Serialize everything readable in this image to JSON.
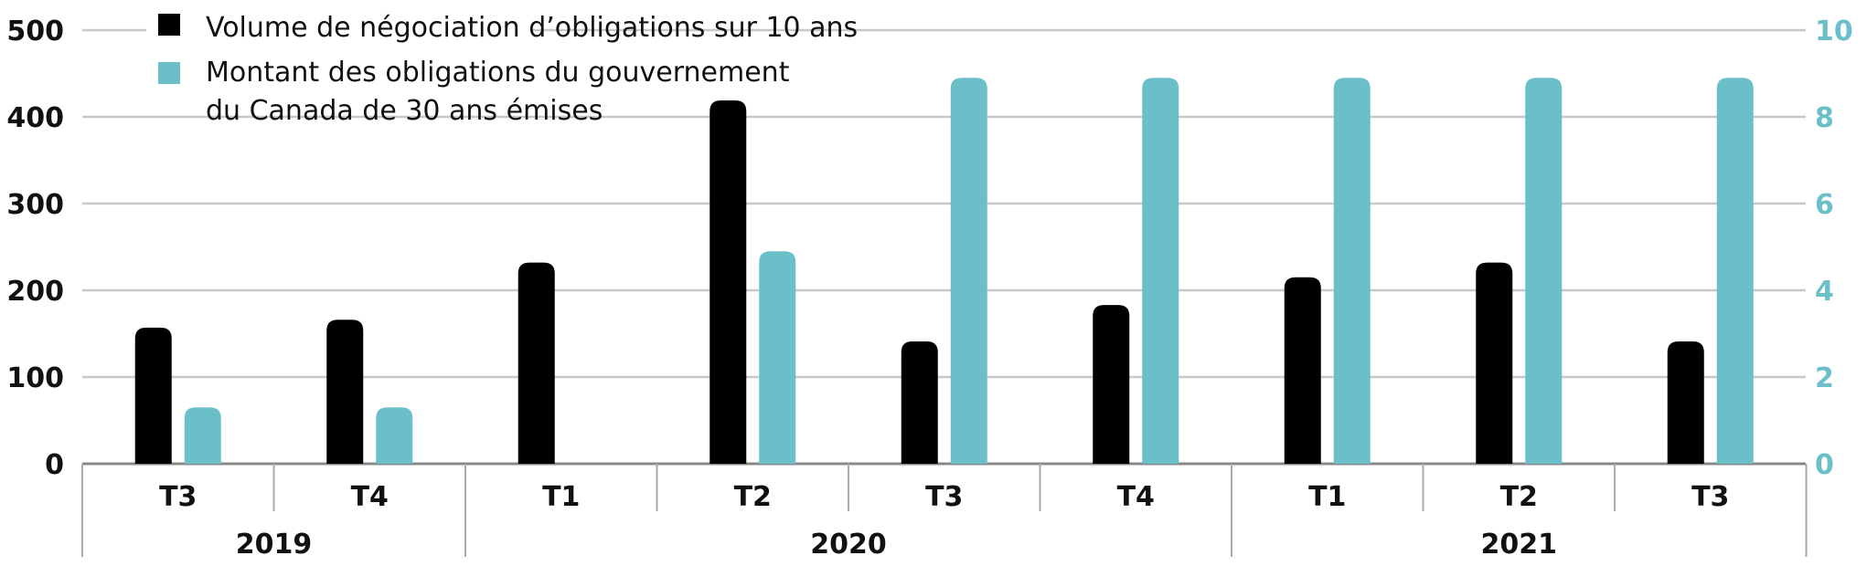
{
  "chart_data": {
    "type": "bar",
    "title": "",
    "xlabel": "",
    "ylabel": "",
    "categories": [
      "T3",
      "T4",
      "T1",
      "T2",
      "T3",
      "T4",
      "T1",
      "T2",
      "T3"
    ],
    "years": [
      {
        "label": "2019",
        "span": 2
      },
      {
        "label": "2020",
        "span": 4
      },
      {
        "label": "2021",
        "span": 3
      }
    ],
    "y_left": {
      "min": 0,
      "max": 500,
      "ticks": [
        "0",
        "100",
        "200",
        "300",
        "400",
        "500"
      ]
    },
    "y_right": {
      "min": 0,
      "max": 10,
      "ticks": [
        "0",
        "2",
        "4",
        "6",
        "8",
        "10"
      ]
    },
    "grid": true,
    "legend_position": "top-left",
    "legend": {
      "volume": "Volume de négociation d’obligations sur 10 ans",
      "montant_line1": "Montant des obligations du gouvernement",
      "montant_line2": "du Canada de 30 ans émises"
    },
    "series": [
      {
        "axis": "left",
        "color": "#000000",
        "values": [
          157,
          166,
          232,
          419,
          141,
          183,
          215,
          232,
          141
        ]
      },
      {
        "axis": "right",
        "color": "#6abfc9",
        "values": [
          1.3,
          1.3,
          0,
          4.9,
          8.9,
          8.9,
          8.9,
          8.9,
          8.9
        ]
      }
    ]
  }
}
